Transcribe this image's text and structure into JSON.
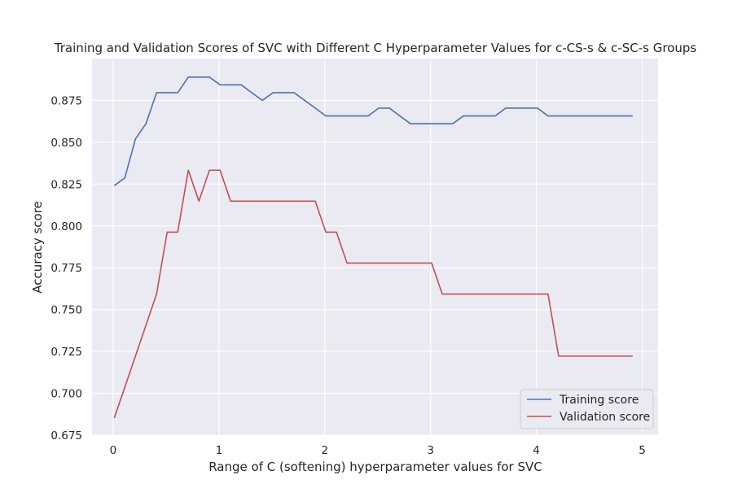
{
  "chart_data": {
    "type": "line",
    "title": "Training and Validation Scores of SVC with Different C Hyperparameter Values for c-CS-s & c-SC-s Groups",
    "xlabel": "Range of C (softening) hyperparameter values for SVC",
    "ylabel": "Accuracy score",
    "xlim": [
      -0.2,
      5.15
    ],
    "ylim": [
      0.675,
      0.9
    ],
    "x_ticks": [
      0,
      1,
      2,
      3,
      4,
      5
    ],
    "x_tick_labels": [
      "0",
      "1",
      "2",
      "3",
      "4",
      "5"
    ],
    "y_ticks": [
      0.675,
      0.7,
      0.725,
      0.75,
      0.775,
      0.8,
      0.825,
      0.85,
      0.875
    ],
    "y_tick_labels": [
      "0.675",
      "0.700",
      "0.725",
      "0.750",
      "0.775",
      "0.800",
      "0.825",
      "0.850",
      "0.875"
    ],
    "grid": true,
    "legend_position": "bottom-right",
    "x": [
      0.01,
      0.11,
      0.21,
      0.31,
      0.41,
      0.51,
      0.61,
      0.71,
      0.81,
      0.91,
      1.01,
      1.11,
      1.21,
      1.31,
      1.41,
      1.51,
      1.61,
      1.71,
      1.81,
      1.91,
      2.01,
      2.11,
      2.21,
      2.31,
      2.41,
      2.51,
      2.61,
      2.71,
      2.81,
      2.91,
      3.01,
      3.11,
      3.21,
      3.31,
      3.41,
      3.51,
      3.61,
      3.71,
      3.81,
      3.91,
      4.01,
      4.11,
      4.21,
      4.31,
      4.41,
      4.51,
      4.61,
      4.71,
      4.81,
      4.91
    ],
    "series": [
      {
        "name": "Training score",
        "color": "#4c72b0",
        "values": [
          0.8241,
          0.8287,
          0.8519,
          0.8611,
          0.8796,
          0.8796,
          0.8796,
          0.8889,
          0.8889,
          0.8889,
          0.8843,
          0.8843,
          0.8843,
          0.8796,
          0.875,
          0.8796,
          0.8796,
          0.8796,
          0.875,
          0.8704,
          0.8657,
          0.8657,
          0.8657,
          0.8657,
          0.8657,
          0.8704,
          0.8704,
          0.8657,
          0.8611,
          0.8611,
          0.8611,
          0.8611,
          0.8611,
          0.8657,
          0.8657,
          0.8657,
          0.8657,
          0.8704,
          0.8704,
          0.8704,
          0.8704,
          0.8657,
          0.8657,
          0.8657,
          0.8657,
          0.8657,
          0.8657,
          0.8657,
          0.8657,
          0.8657
        ]
      },
      {
        "name": "Validation score",
        "color": "#c44e52",
        "values": [
          0.6852,
          0.7037,
          0.7222,
          0.7407,
          0.7593,
          0.7963,
          0.7963,
          0.8333,
          0.8148,
          0.8333,
          0.8333,
          0.8148,
          0.8148,
          0.8148,
          0.8148,
          0.8148,
          0.8148,
          0.8148,
          0.8148,
          0.8148,
          0.7963,
          0.7963,
          0.7778,
          0.7778,
          0.7778,
          0.7778,
          0.7778,
          0.7778,
          0.7778,
          0.7778,
          0.7778,
          0.7593,
          0.7593,
          0.7593,
          0.7593,
          0.7593,
          0.7593,
          0.7593,
          0.7593,
          0.7593,
          0.7593,
          0.7593,
          0.7222,
          0.7222,
          0.7222,
          0.7222,
          0.7222,
          0.7222,
          0.7222,
          0.7222
        ]
      }
    ]
  }
}
